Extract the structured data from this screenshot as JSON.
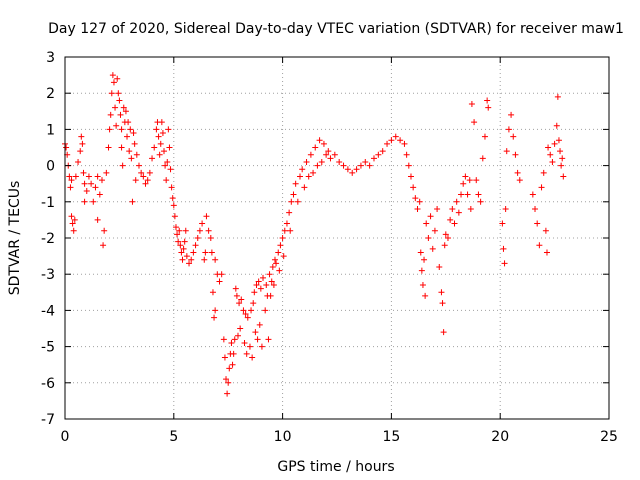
{
  "chart_data": {
    "type": "scatter",
    "title": "Day 127 of 2020, Sidereal Day-to-day VTEC variation (SDTVAR) for receiver maw1",
    "xlabel": "GPS time / hours",
    "ylabel": "SDTVAR / TECUs",
    "xlim": [
      0,
      25
    ],
    "ylim": [
      -7,
      3
    ],
    "xticks": [
      0,
      5,
      10,
      15,
      20,
      25
    ],
    "yticks": [
      -7,
      -6,
      -5,
      -4,
      -3,
      -2,
      -1,
      0,
      1,
      2,
      3
    ],
    "xtick_labels": [
      "0",
      "5",
      "10",
      "15",
      "20",
      "25"
    ],
    "ytick_labels": [
      "-7",
      "-6",
      "-5",
      "-4",
      "-3",
      "-2",
      "-1",
      "0",
      "1",
      "2",
      "3"
    ],
    "grid": true,
    "marker": "+",
    "color": "#ff0000",
    "series": [
      {
        "name": "SDTVAR",
        "points": [
          [
            0.0,
            0.6
          ],
          [
            0.05,
            0.5
          ],
          [
            0.1,
            0.3
          ],
          [
            0.15,
            0.0
          ],
          [
            0.2,
            -0.3
          ],
          [
            0.25,
            -0.6
          ],
          [
            0.3,
            -0.4
          ],
          [
            0.3,
            -1.4
          ],
          [
            0.35,
            -1.6
          ],
          [
            0.4,
            -1.8
          ],
          [
            0.45,
            -1.5
          ],
          [
            0.5,
            -0.3
          ],
          [
            0.6,
            0.1
          ],
          [
            0.7,
            0.4
          ],
          [
            0.75,
            0.8
          ],
          [
            0.8,
            0.6
          ],
          [
            0.85,
            -0.2
          ],
          [
            0.9,
            -0.5
          ],
          [
            0.9,
            -1.0
          ],
          [
            1.0,
            -0.7
          ],
          [
            1.1,
            -0.3
          ],
          [
            1.2,
            -0.5
          ],
          [
            1.3,
            -1.0
          ],
          [
            1.4,
            -0.6
          ],
          [
            1.5,
            -0.3
          ],
          [
            1.5,
            -1.5
          ],
          [
            1.6,
            -0.8
          ],
          [
            1.7,
            -0.4
          ],
          [
            1.75,
            -2.2
          ],
          [
            1.8,
            -1.8
          ],
          [
            1.9,
            -0.2
          ],
          [
            2.0,
            0.5
          ],
          [
            2.05,
            1.0
          ],
          [
            2.1,
            1.4
          ],
          [
            2.15,
            2.0
          ],
          [
            2.2,
            2.5
          ],
          [
            2.25,
            2.3
          ],
          [
            2.3,
            1.6
          ],
          [
            2.35,
            1.1
          ],
          [
            2.4,
            2.4
          ],
          [
            2.45,
            2.0
          ],
          [
            2.5,
            1.8
          ],
          [
            2.55,
            1.4
          ],
          [
            2.6,
            1.0
          ],
          [
            2.6,
            0.5
          ],
          [
            2.65,
            0.0
          ],
          [
            2.7,
            1.6
          ],
          [
            2.75,
            1.2
          ],
          [
            2.8,
            1.5
          ],
          [
            2.85,
            0.8
          ],
          [
            2.9,
            1.2
          ],
          [
            2.95,
            0.4
          ],
          [
            3.0,
            1.0
          ],
          [
            3.05,
            0.2
          ],
          [
            3.1,
            -1.0
          ],
          [
            3.15,
            0.9
          ],
          [
            3.2,
            0.6
          ],
          [
            3.25,
            -0.4
          ],
          [
            3.3,
            0.3
          ],
          [
            3.4,
            0.0
          ],
          [
            3.5,
            -0.2
          ],
          [
            3.6,
            -0.3
          ],
          [
            3.7,
            -0.5
          ],
          [
            3.8,
            -0.4
          ],
          [
            3.9,
            -0.2
          ],
          [
            4.0,
            0.2
          ],
          [
            4.1,
            0.5
          ],
          [
            4.2,
            1.0
          ],
          [
            4.25,
            1.2
          ],
          [
            4.3,
            0.8
          ],
          [
            4.35,
            0.3
          ],
          [
            4.4,
            0.6
          ],
          [
            4.45,
            1.2
          ],
          [
            4.5,
            0.9
          ],
          [
            4.55,
            0.4
          ],
          [
            4.6,
            0.0
          ],
          [
            4.65,
            -0.4
          ],
          [
            4.7,
            0.1
          ],
          [
            4.75,
            1.0
          ],
          [
            4.8,
            0.5
          ],
          [
            4.85,
            -0.1
          ],
          [
            4.9,
            -0.6
          ],
          [
            4.95,
            -0.9
          ],
          [
            5.0,
            -1.1
          ],
          [
            5.05,
            -1.4
          ],
          [
            5.1,
            -1.7
          ],
          [
            5.15,
            -1.9
          ],
          [
            5.2,
            -2.1
          ],
          [
            5.25,
            -1.8
          ],
          [
            5.3,
            -2.2
          ],
          [
            5.35,
            -2.4
          ],
          [
            5.4,
            -2.6
          ],
          [
            5.45,
            -2.3
          ],
          [
            5.5,
            -2.1
          ],
          [
            5.55,
            -1.8
          ],
          [
            5.6,
            -2.5
          ],
          [
            5.7,
            -2.7
          ],
          [
            5.8,
            -2.6
          ],
          [
            5.9,
            -2.4
          ],
          [
            6.0,
            -2.2
          ],
          [
            6.1,
            -2.0
          ],
          [
            6.2,
            -1.8
          ],
          [
            6.3,
            -1.6
          ],
          [
            6.4,
            -2.6
          ],
          [
            6.45,
            -2.4
          ],
          [
            6.5,
            -1.4
          ],
          [
            6.6,
            -1.8
          ],
          [
            6.7,
            -2.0
          ],
          [
            6.75,
            -2.4
          ],
          [
            6.8,
            -3.5
          ],
          [
            6.85,
            -4.2
          ],
          [
            6.9,
            -4.0
          ],
          [
            6.9,
            -2.6
          ],
          [
            7.0,
            -3.0
          ],
          [
            7.1,
            -3.2
          ],
          [
            7.2,
            -3.0
          ],
          [
            7.3,
            -4.8
          ],
          [
            7.35,
            -5.3
          ],
          [
            7.4,
            -5.9
          ],
          [
            7.45,
            -6.3
          ],
          [
            7.5,
            -6.0
          ],
          [
            7.55,
            -5.6
          ],
          [
            7.6,
            -5.2
          ],
          [
            7.65,
            -4.9
          ],
          [
            7.7,
            -5.5
          ],
          [
            7.75,
            -5.2
          ],
          [
            7.8,
            -4.8
          ],
          [
            7.85,
            -3.4
          ],
          [
            7.9,
            -3.6
          ],
          [
            7.95,
            -4.7
          ],
          [
            8.0,
            -3.8
          ],
          [
            8.05,
            -4.5
          ],
          [
            8.1,
            -3.7
          ],
          [
            8.2,
            -4.0
          ],
          [
            8.25,
            -4.9
          ],
          [
            8.3,
            -4.1
          ],
          [
            8.35,
            -5.2
          ],
          [
            8.4,
            -4.2
          ],
          [
            8.5,
            -5.0
          ],
          [
            8.55,
            -4.0
          ],
          [
            8.6,
            -5.3
          ],
          [
            8.65,
            -3.8
          ],
          [
            8.7,
            -3.5
          ],
          [
            8.75,
            -4.6
          ],
          [
            8.8,
            -3.3
          ],
          [
            8.85,
            -4.8
          ],
          [
            8.9,
            -3.2
          ],
          [
            8.95,
            -4.4
          ],
          [
            9.0,
            -3.4
          ],
          [
            9.05,
            -5.0
          ],
          [
            9.1,
            -3.1
          ],
          [
            9.2,
            -4.0
          ],
          [
            9.25,
            -3.3
          ],
          [
            9.3,
            -3.6
          ],
          [
            9.35,
            -4.8
          ],
          [
            9.4,
            -3.0
          ],
          [
            9.45,
            -3.6
          ],
          [
            9.5,
            -3.2
          ],
          [
            9.55,
            -2.8
          ],
          [
            9.6,
            -3.3
          ],
          [
            9.65,
            -2.6
          ],
          [
            9.7,
            -2.7
          ],
          [
            9.8,
            -2.4
          ],
          [
            9.85,
            -2.9
          ],
          [
            9.9,
            -2.2
          ],
          [
            10.0,
            -2.0
          ],
          [
            10.05,
            -2.5
          ],
          [
            10.1,
            -1.8
          ],
          [
            10.2,
            -1.6
          ],
          [
            10.3,
            -1.3
          ],
          [
            10.35,
            -1.8
          ],
          [
            10.4,
            -1.0
          ],
          [
            10.5,
            -0.8
          ],
          [
            10.6,
            -0.5
          ],
          [
            10.7,
            -1.0
          ],
          [
            10.8,
            -0.3
          ],
          [
            10.9,
            -0.1
          ],
          [
            11.0,
            -0.6
          ],
          [
            11.1,
            0.1
          ],
          [
            11.2,
            -0.3
          ],
          [
            11.3,
            0.3
          ],
          [
            11.4,
            -0.2
          ],
          [
            11.5,
            0.5
          ],
          [
            11.6,
            0.0
          ],
          [
            11.7,
            0.7
          ],
          [
            11.8,
            0.1
          ],
          [
            11.9,
            0.6
          ],
          [
            12.0,
            0.3
          ],
          [
            12.1,
            0.4
          ],
          [
            12.2,
            0.2
          ],
          [
            12.4,
            0.3
          ],
          [
            12.6,
            0.1
          ],
          [
            12.8,
            0.0
          ],
          [
            13.0,
            -0.1
          ],
          [
            13.2,
            -0.2
          ],
          [
            13.4,
            -0.1
          ],
          [
            13.6,
            0.0
          ],
          [
            13.8,
            0.1
          ],
          [
            14.0,
            0.0
          ],
          [
            14.2,
            0.2
          ],
          [
            14.4,
            0.3
          ],
          [
            14.6,
            0.4
          ],
          [
            14.8,
            0.6
          ],
          [
            15.0,
            0.7
          ],
          [
            15.2,
            0.8
          ],
          [
            15.4,
            0.7
          ],
          [
            15.6,
            0.6
          ],
          [
            15.7,
            0.3
          ],
          [
            15.8,
            0.0
          ],
          [
            15.9,
            -0.3
          ],
          [
            16.0,
            -0.6
          ],
          [
            16.1,
            -0.9
          ],
          [
            16.2,
            -1.2
          ],
          [
            16.3,
            -1.0
          ],
          [
            16.35,
            -2.4
          ],
          [
            16.4,
            -2.9
          ],
          [
            16.45,
            -3.3
          ],
          [
            16.5,
            -2.6
          ],
          [
            16.55,
            -3.6
          ],
          [
            16.6,
            -1.6
          ],
          [
            16.7,
            -2.0
          ],
          [
            16.8,
            -1.4
          ],
          [
            16.9,
            -2.3
          ],
          [
            17.0,
            -1.8
          ],
          [
            17.1,
            -1.2
          ],
          [
            17.2,
            -2.8
          ],
          [
            17.3,
            -3.5
          ],
          [
            17.35,
            -3.8
          ],
          [
            17.4,
            -4.6
          ],
          [
            17.45,
            -2.2
          ],
          [
            17.5,
            -1.9
          ],
          [
            17.6,
            -2.0
          ],
          [
            17.7,
            -1.5
          ],
          [
            17.8,
            -1.2
          ],
          [
            17.9,
            -1.6
          ],
          [
            18.0,
            -1.0
          ],
          [
            18.1,
            -1.3
          ],
          [
            18.2,
            -0.8
          ],
          [
            18.3,
            -0.5
          ],
          [
            18.4,
            -0.3
          ],
          [
            18.5,
            -0.8
          ],
          [
            18.6,
            -0.4
          ],
          [
            18.65,
            -1.2
          ],
          [
            18.7,
            1.7
          ],
          [
            18.8,
            1.2
          ],
          [
            18.9,
            -0.4
          ],
          [
            19.0,
            -0.8
          ],
          [
            19.1,
            -1.0
          ],
          [
            19.2,
            0.2
          ],
          [
            19.3,
            0.8
          ],
          [
            19.4,
            1.8
          ],
          [
            19.45,
            1.6
          ],
          [
            20.1,
            -1.6
          ],
          [
            20.15,
            -2.3
          ],
          [
            20.2,
            -2.7
          ],
          [
            20.25,
            -1.2
          ],
          [
            20.3,
            0.4
          ],
          [
            20.4,
            1.0
          ],
          [
            20.5,
            1.4
          ],
          [
            20.6,
            0.8
          ],
          [
            20.7,
            0.3
          ],
          [
            20.8,
            -0.2
          ],
          [
            20.9,
            -0.4
          ],
          [
            21.5,
            -0.8
          ],
          [
            21.6,
            -1.2
          ],
          [
            21.7,
            -1.6
          ],
          [
            21.8,
            -2.2
          ],
          [
            21.9,
            -0.6
          ],
          [
            22.0,
            -0.2
          ],
          [
            22.1,
            -1.8
          ],
          [
            22.15,
            -2.4
          ],
          [
            22.2,
            0.5
          ],
          [
            22.3,
            0.3
          ],
          [
            22.4,
            0.1
          ],
          [
            22.5,
            0.6
          ],
          [
            22.6,
            1.1
          ],
          [
            22.65,
            1.9
          ],
          [
            22.7,
            0.7
          ],
          [
            22.75,
            0.4
          ],
          [
            22.8,
            0.0
          ],
          [
            22.85,
            0.2
          ],
          [
            22.9,
            -0.3
          ]
        ]
      }
    ]
  }
}
